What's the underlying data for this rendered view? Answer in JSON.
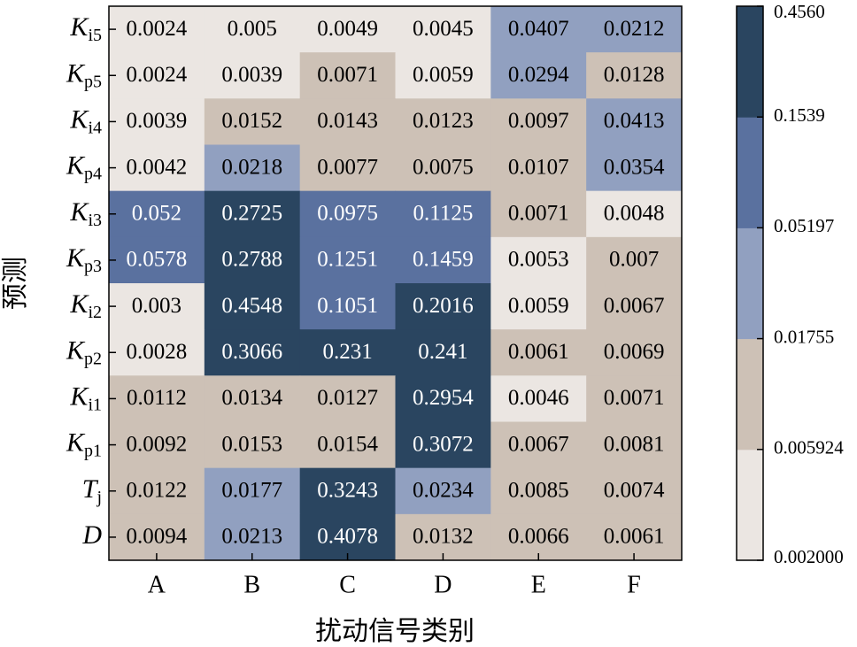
{
  "chart_data": {
    "type": "heatmap",
    "xlabel": "扰动信号类别",
    "ylabel": "预测",
    "categories": [
      "A",
      "B",
      "C",
      "D",
      "E",
      "F"
    ],
    "rows": [
      "Ki5",
      "Kp5",
      "Ki4",
      "Kp4",
      "Ki3",
      "Kp3",
      "Ki2",
      "Kp2",
      "Ki1",
      "Kp1",
      "Tj",
      "D"
    ],
    "values": [
      [
        0.0024,
        0.005,
        0.0049,
        0.0045,
        0.0407,
        0.0212
      ],
      [
        0.0024,
        0.0039,
        0.0071,
        0.0059,
        0.0294,
        0.0128
      ],
      [
        0.0039,
        0.0152,
        0.0143,
        0.0123,
        0.0097,
        0.0413
      ],
      [
        0.0042,
        0.0218,
        0.0077,
        0.0075,
        0.0107,
        0.0354
      ],
      [
        0.052,
        0.2725,
        0.0975,
        0.1125,
        0.0071,
        0.0048
      ],
      [
        0.0578,
        0.2788,
        0.1251,
        0.1459,
        0.0053,
        0.007
      ],
      [
        0.003,
        0.4548,
        0.1051,
        0.2016,
        0.0059,
        0.0067
      ],
      [
        0.0028,
        0.3066,
        0.231,
        0.241,
        0.0061,
        0.0069
      ],
      [
        0.0112,
        0.0134,
        0.0127,
        0.2954,
        0.0046,
        0.0071
      ],
      [
        0.0092,
        0.0153,
        0.0154,
        0.3072,
        0.0067,
        0.0081
      ],
      [
        0.0122,
        0.0177,
        0.3243,
        0.0234,
        0.0085,
        0.0074
      ],
      [
        0.0094,
        0.0213,
        0.4078,
        0.0132,
        0.0066,
        0.0061
      ]
    ],
    "colorbar_ticks": [
      {
        "value": 0.002,
        "label": "0.002000"
      },
      0.005924,
      0.01755,
      0.05197,
      0.1539,
      {
        "value": 0.456,
        "label": "0.4560"
      }
    ],
    "colors": [
      "#ebe6e2",
      "#cdc1b6",
      "#91a0c0",
      "#5a719f",
      "#2a4560"
    ],
    "light_text_from_bin": 3
  }
}
